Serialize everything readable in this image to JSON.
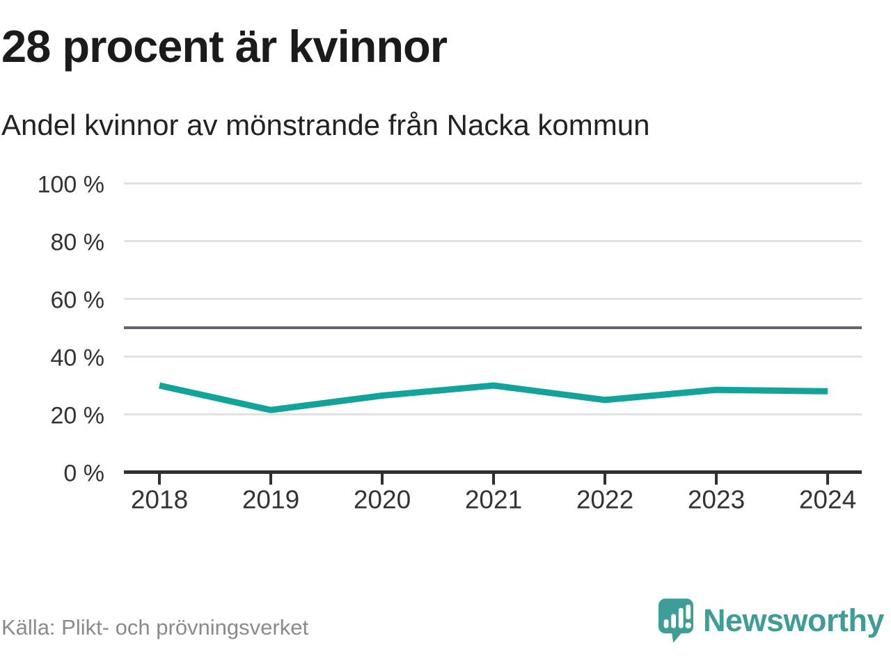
{
  "header": {
    "title": "28 procent är kvinnor",
    "subtitle": "Andel kvinnor av mönstrande från Nacka kommun"
  },
  "footer": {
    "source": "Källa: Plikt- och prövningsverket",
    "brand": "Newsworthy"
  },
  "colors": {
    "line": "#12a39a",
    "grid": "#e2e2e2",
    "reference_line": "#64646b",
    "axis": "#2f2f2f",
    "tick_text": "#333333",
    "title_text": "#1b1b1b",
    "source_text": "#8a8a8a",
    "brand": "#3f9d98"
  },
  "chart_data": {
    "type": "line",
    "title": "28 procent är kvinnor",
    "subtitle": "Andel kvinnor av mönstrande från Nacka kommun",
    "x": [
      2018,
      2019,
      2020,
      2021,
      2022,
      2023,
      2024
    ],
    "series": [
      {
        "name": "Andel kvinnor av mönstrande",
        "values": [
          30,
          21.5,
          26.5,
          30,
          25,
          28.5,
          28
        ]
      }
    ],
    "unit": "%",
    "ylim": [
      0,
      100
    ],
    "yticks": [
      0,
      20,
      40,
      60,
      80,
      100
    ],
    "ytick_labels": [
      "0 %",
      "20 %",
      "40 %",
      "60 %",
      "80 %",
      "100 %"
    ],
    "reference_line": 50,
    "grid": true,
    "legend": "none",
    "xlabel": "",
    "ylabel": ""
  }
}
